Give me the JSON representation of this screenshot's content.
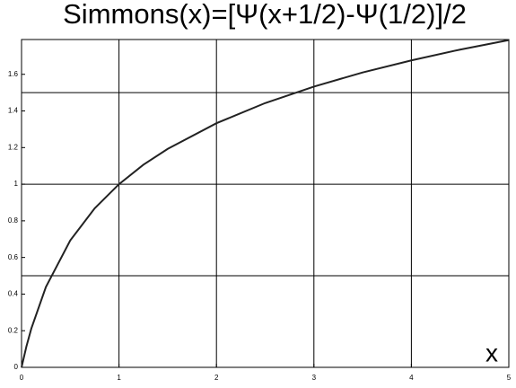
{
  "chart_data": {
    "type": "line",
    "title": "Simmons(x)=[Ψ(x+1/2)-Ψ(1/2)]/2",
    "x_label": "x",
    "x": [
      0,
      0.05,
      0.1,
      0.25,
      0.5,
      0.75,
      1,
      1.25,
      1.5,
      2,
      2.5,
      3,
      3.5,
      4,
      4.5,
      5
    ],
    "series": [
      {
        "name": "Simmons(x)",
        "color": "#222222",
        "values": [
          0,
          0.114,
          0.211,
          0.439,
          0.693,
          0.868,
          1,
          1.106,
          1.193,
          1.333,
          1.443,
          1.533,
          1.61,
          1.676,
          1.735,
          1.787
        ]
      }
    ],
    "xlim": [
      0,
      5
    ],
    "ylim": [
      0,
      1.79
    ],
    "xticks": [
      0,
      1,
      2,
      3,
      4,
      5
    ],
    "yticks": [
      0,
      0.2,
      0.4,
      0.6,
      0.8,
      1,
      1.2,
      1.4,
      1.6
    ],
    "xgrid": [
      1,
      2,
      3,
      4
    ],
    "ygrid": [
      0.5,
      1,
      1.5
    ]
  }
}
